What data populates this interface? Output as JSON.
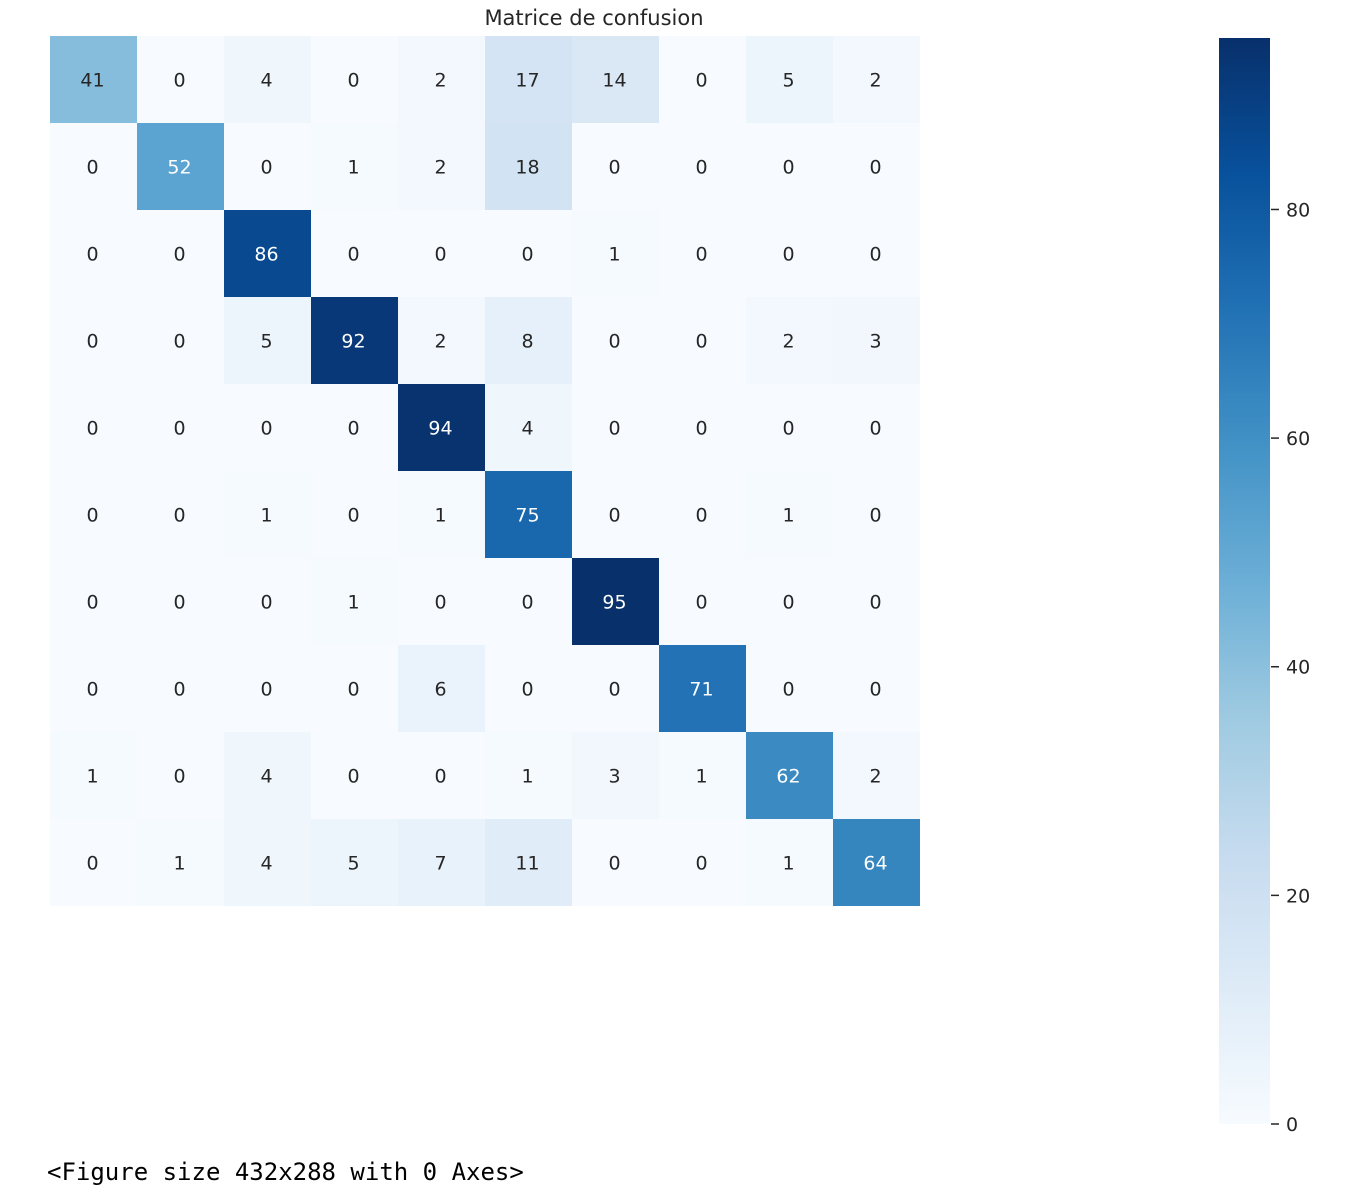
{
  "chart_data": {
    "type": "heatmap",
    "title": "Matrice de confusion",
    "matrix": [
      [
        41,
        0,
        4,
        0,
        2,
        17,
        14,
        0,
        5,
        2
      ],
      [
        0,
        52,
        0,
        1,
        2,
        18,
        0,
        0,
        0,
        0
      ],
      [
        0,
        0,
        86,
        0,
        0,
        0,
        1,
        0,
        0,
        0
      ],
      [
        0,
        0,
        5,
        92,
        2,
        8,
        0,
        0,
        2,
        3
      ],
      [
        0,
        0,
        0,
        0,
        94,
        4,
        0,
        0,
        0,
        0
      ],
      [
        0,
        0,
        1,
        0,
        1,
        75,
        0,
        0,
        1,
        0
      ],
      [
        0,
        0,
        0,
        1,
        0,
        0,
        95,
        0,
        0,
        0
      ],
      [
        0,
        0,
        0,
        0,
        6,
        0,
        0,
        71,
        0,
        0
      ],
      [
        1,
        0,
        4,
        0,
        0,
        1,
        3,
        1,
        62,
        2
      ],
      [
        0,
        1,
        4,
        5,
        7,
        11,
        0,
        0,
        1,
        64
      ]
    ],
    "colormap": "Blues",
    "vmin": 0,
    "vmax": 95,
    "annotations": true,
    "colorbar": {
      "ticks": [
        0,
        20,
        40,
        60,
        80
      ],
      "tick_labels": [
        "0",
        "20",
        "40",
        "60",
        "80"
      ]
    },
    "grid": false
  },
  "caption": "<Figure size 432x288 with 0 Axes>"
}
